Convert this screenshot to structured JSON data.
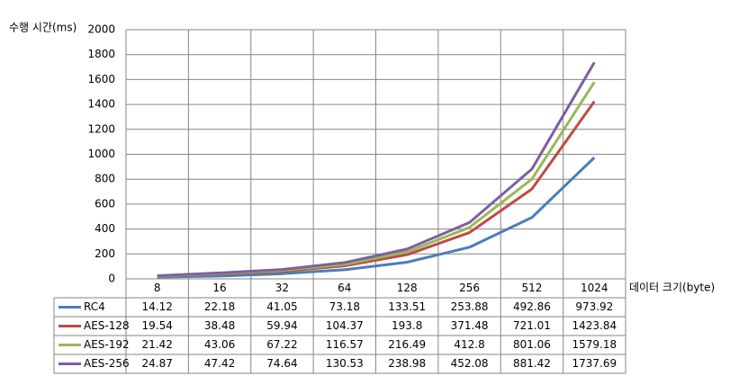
{
  "chart_data": {
    "type": "line",
    "y_label": "수행 시간(ms)",
    "x_label": "데이터 크기(byte)",
    "categories": [
      "8",
      "16",
      "32",
      "64",
      "128",
      "256",
      "512",
      "1024"
    ],
    "series": [
      {
        "name": "RC4",
        "color": "#4a7ebb",
        "values": [
          14.12,
          22.18,
          41.05,
          73.18,
          133.51,
          253.88,
          492.86,
          973.92
        ]
      },
      {
        "name": "AES-128",
        "color": "#be4b48",
        "values": [
          19.54,
          38.48,
          59.94,
          104.37,
          193.8,
          371.48,
          721.01,
          1423.84
        ]
      },
      {
        "name": "AES-192",
        "color": "#98b954",
        "values": [
          21.42,
          43.06,
          67.22,
          116.57,
          216.49,
          412.8,
          801.06,
          1579.18
        ]
      },
      {
        "name": "AES-256",
        "color": "#7d5fa0",
        "values": [
          24.87,
          47.42,
          74.64,
          130.53,
          238.98,
          452.08,
          881.42,
          1737.69
        ]
      }
    ],
    "ylim": [
      0,
      2000
    ],
    "yticks": [
      0,
      200,
      400,
      600,
      800,
      1000,
      1200,
      1400,
      1600,
      1800,
      2000
    ],
    "grid": true
  }
}
